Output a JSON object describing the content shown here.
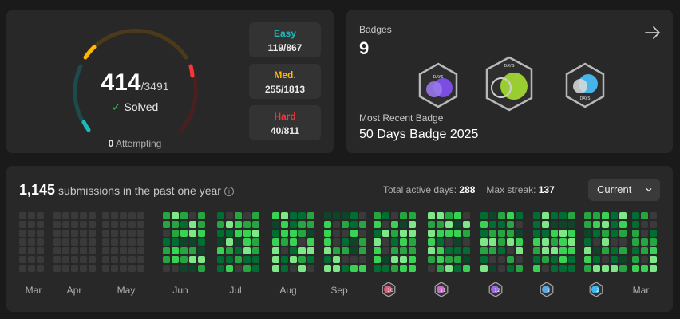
{
  "solved": {
    "count": "414",
    "total": "/3491",
    "label": "Solved",
    "attempting_count": "0",
    "attempting_label": "Attempting",
    "easy": {
      "name": "Easy",
      "value": "119/867",
      "color": "#1cbaba"
    },
    "medium": {
      "name": "Med.",
      "value": "255/1813",
      "color": "#ffb700"
    },
    "hard": {
      "name": "Hard",
      "value": "40/811",
      "color": "#f63737"
    }
  },
  "badges": {
    "title": "Badges",
    "count": "9",
    "recent_label": "Most Recent Badge",
    "recent_name": "50 Days Badge 2025",
    "items": [
      "days-badge-purple",
      "days-badge-green",
      "days-badge-blue"
    ]
  },
  "activity": {
    "count": "1,145",
    "title_text": "submissions in the past one year",
    "active_days_label": "Total active days:",
    "active_days": "288",
    "max_streak_label": "Max streak:",
    "max_streak": "137",
    "period": "Current",
    "months": [
      {
        "label": "Mar",
        "type": "text"
      },
      {
        "label": "Apr",
        "type": "text"
      },
      {
        "label": "May",
        "type": "text"
      },
      {
        "label": "Jun",
        "type": "text"
      },
      {
        "label": "Jul",
        "type": "text"
      },
      {
        "label": "Aug",
        "type": "text"
      },
      {
        "label": "Sep",
        "type": "text"
      },
      {
        "label": "10",
        "type": "badge",
        "color": "#d9607a"
      },
      {
        "label": "11",
        "type": "badge",
        "color": "#c070c0"
      },
      {
        "label": "12",
        "type": "badge",
        "color": "#9a6ae0"
      },
      {
        "label": "1",
        "type": "badge",
        "color": "#5aa8e0"
      },
      {
        "label": "2",
        "type": "badge",
        "color": "#3ab8f0"
      },
      {
        "label": "Mar",
        "type": "text"
      }
    ]
  }
}
